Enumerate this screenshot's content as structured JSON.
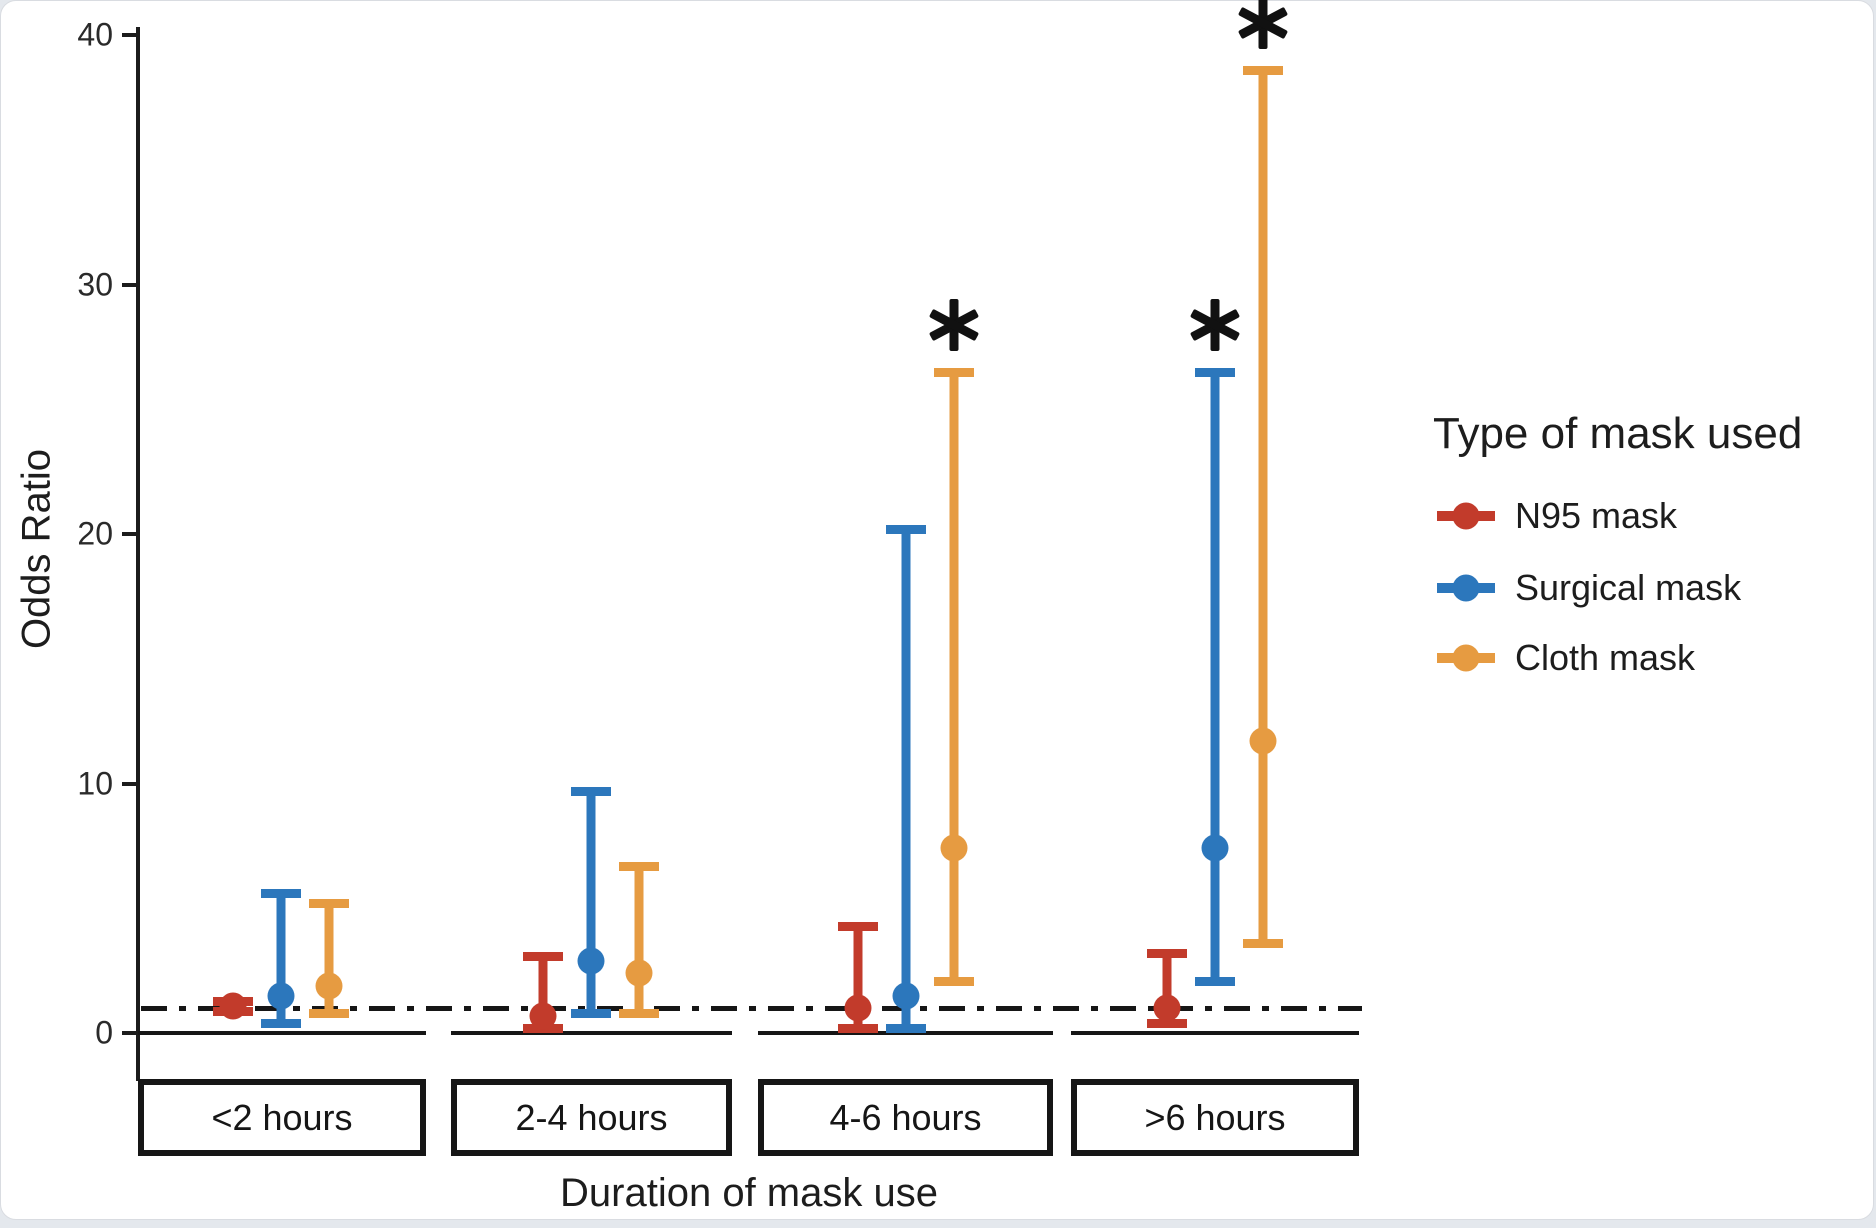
{
  "chart_data": {
    "type": "errorbar-forest",
    "title": "",
    "ylabel": "Odds Ratio",
    "xlabel": "Duration of mask use",
    "ylim": [
      0,
      40
    ],
    "yticks": [
      0,
      10,
      20,
      30,
      40
    ],
    "grid": "off",
    "reference_line": {
      "value": 1,
      "style": "dashed",
      "color": "#161616"
    },
    "categories": [
      "<2 hours",
      "2-4 hours",
      "4-6 hours",
      ">6 hours"
    ],
    "legend": {
      "title": "Type of mask used",
      "position": "right",
      "entries": [
        "N95 mask",
        "Surgical mask",
        "Cloth mask"
      ]
    },
    "series": [
      {
        "name": "N95 mask",
        "color": "#c23b2b",
        "points": [
          {
            "category": "<2 hours",
            "or": 1.1,
            "ci_low": 0.9,
            "ci_high": 1.3,
            "significant": false
          },
          {
            "category": "2-4 hours",
            "or": 0.7,
            "ci_low": 0.2,
            "ci_high": 3.1,
            "significant": false
          },
          {
            "category": "4-6 hours",
            "or": 1.0,
            "ci_low": 0.2,
            "ci_high": 4.3,
            "significant": false
          },
          {
            "category": ">6 hours",
            "or": 1.0,
            "ci_low": 0.4,
            "ci_high": 3.2,
            "significant": false
          }
        ]
      },
      {
        "name": "Surgical mask",
        "color": "#2c77bc",
        "points": [
          {
            "category": "<2 hours",
            "or": 1.5,
            "ci_low": 0.4,
            "ci_high": 5.6,
            "significant": false
          },
          {
            "category": "2-4 hours",
            "or": 2.9,
            "ci_low": 0.8,
            "ci_high": 9.7,
            "significant": false
          },
          {
            "category": "4-6 hours",
            "or": 1.5,
            "ci_low": 0.2,
            "ci_high": 20.2,
            "significant": false
          },
          {
            "category": ">6 hours",
            "or": 7.4,
            "ci_low": 2.1,
            "ci_high": 26.5,
            "significant": true
          }
        ]
      },
      {
        "name": "Cloth mask",
        "color": "#e69b41",
        "points": [
          {
            "category": "<2 hours",
            "or": 1.9,
            "ci_low": 0.8,
            "ci_high": 5.2,
            "significant": false
          },
          {
            "category": "2-4 hours",
            "or": 2.4,
            "ci_low": 0.8,
            "ci_high": 6.7,
            "significant": false
          },
          {
            "category": "4-6 hours",
            "or": 7.4,
            "ci_low": 2.1,
            "ci_high": 26.5,
            "significant": true
          },
          {
            "category": ">6 hours",
            "or": 11.7,
            "ci_low": 3.6,
            "ci_high": 38.6,
            "significant": true
          }
        ]
      }
    ],
    "annotations": {
      "significance_marker": "*"
    }
  }
}
